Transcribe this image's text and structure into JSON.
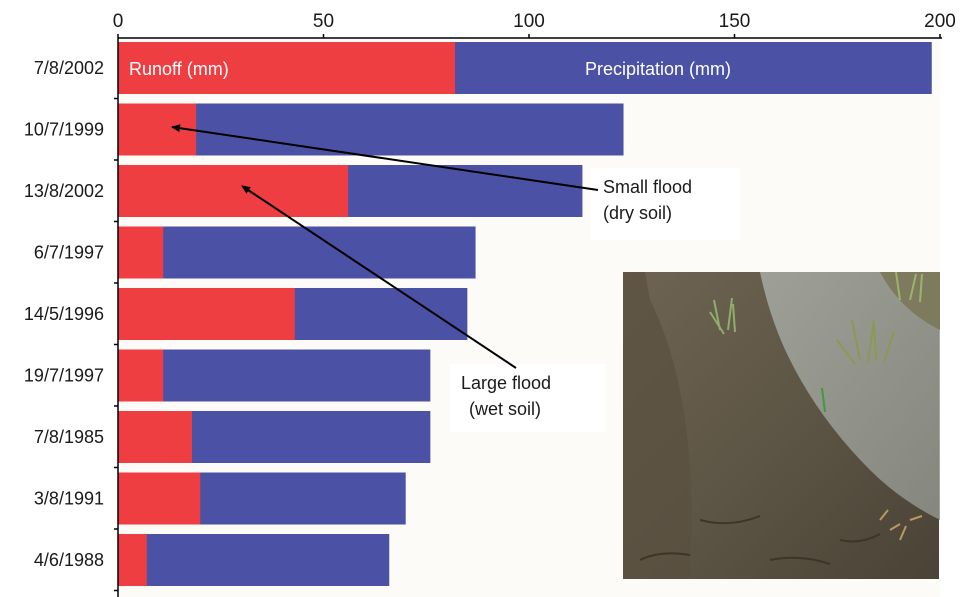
{
  "chart_data": {
    "type": "bar",
    "orientation": "horizontal",
    "categories": [
      "7/8/2002",
      "10/7/1999",
      "13/8/2002",
      "6/7/1997",
      "14/5/1996",
      "19/7/1997",
      "7/8/1985",
      "3/8/1991",
      "4/6/1988"
    ],
    "series": [
      {
        "name": "Precipitation (mm)",
        "color": "#4b52a5",
        "values": [
          198,
          123,
          113,
          87,
          85,
          76,
          76,
          70,
          66
        ]
      },
      {
        "name": "Runoff (mm)",
        "color": "#ef3e42",
        "values": [
          82,
          19,
          56,
          11,
          43,
          11,
          18,
          20,
          7
        ]
      }
    ],
    "xlim": [
      0,
      200
    ],
    "xticks": [
      0,
      50,
      100,
      150,
      200
    ],
    "axis_position": "top",
    "grid": false,
    "legend": "in-bar labels",
    "annotations": [
      {
        "text_lines": [
          "Small flood",
          "(dry soil)"
        ],
        "target_category": "10/7/1999",
        "target_value": 13
      },
      {
        "text_lines": [
          "Large flood",
          "(wet soil)"
        ],
        "target_category": "13/8/2002",
        "target_value": 29
      }
    ],
    "inset_photo": "muddy-field-photo"
  }
}
